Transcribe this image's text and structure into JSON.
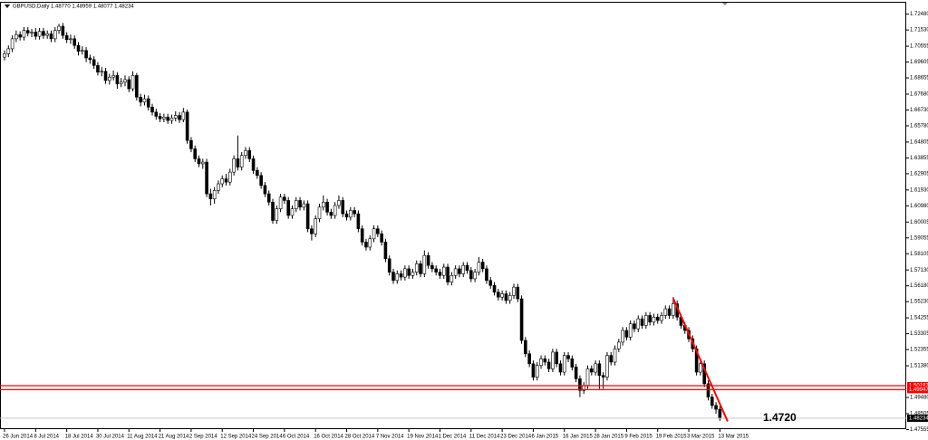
{
  "chart_data": {
    "type": "candlestick",
    "title": "GBPUSD,Daily  1.48770 1.48959 1.48077 1.48234",
    "categories": [
      "26 Jun 2014",
      null,
      null,
      null,
      null,
      null,
      null,
      null,
      "8 Jul 2014",
      null,
      null,
      null,
      null,
      null,
      null,
      null,
      "18 Jul 2014",
      null,
      null,
      null,
      null,
      null,
      null,
      null,
      "30 Jul 2014",
      null,
      null,
      null,
      null,
      null,
      null,
      null,
      "11 Aug 2014",
      null,
      null,
      null,
      null,
      null,
      null,
      null,
      "21 Aug 2014",
      null,
      null,
      null,
      null,
      null,
      null,
      null,
      "2 Sep 2014",
      null,
      null,
      null,
      null,
      null,
      null,
      null,
      "12 Sep 2014",
      null,
      null,
      null,
      null,
      null,
      null,
      null,
      "24 Sep 2014",
      null,
      null,
      null,
      null,
      null,
      null,
      null,
      "6 Oct 2014",
      null,
      null,
      null,
      null,
      null,
      null,
      null,
      "16 Oct 2014",
      null,
      null,
      null,
      null,
      null,
      null,
      null,
      "28 Oct 2014",
      null,
      null,
      null,
      null,
      null,
      null,
      null,
      "7 Nov 2014",
      null,
      null,
      null,
      null,
      null,
      null,
      null,
      "19 Nov 2014",
      null,
      null,
      null,
      null,
      null,
      null,
      null,
      "1 Dec 2014",
      null,
      null,
      null,
      null,
      null,
      null,
      null,
      "11 Dec 2014",
      null,
      null,
      null,
      null,
      null,
      null,
      null,
      "23 Dec 2014",
      null,
      null,
      null,
      null,
      null,
      null,
      null,
      "6 Jan 2015",
      null,
      null,
      null,
      null,
      null,
      null,
      null,
      "16 Jan 2015",
      null,
      null,
      null,
      null,
      null,
      null,
      null,
      "28 Jan 2015",
      null,
      null,
      null,
      null,
      null,
      null,
      null,
      "9 Feb 2015",
      null,
      null,
      null,
      null,
      null,
      null,
      null,
      "19 Feb 2015",
      null,
      null,
      null,
      null,
      null,
      null,
      null,
      "3 Mar 2015",
      null,
      null,
      null,
      null,
      null,
      null,
      null,
      "13 Mar 2015"
    ],
    "open": [
      1.699,
      1.701,
      1.704,
      1.71,
      1.7125,
      1.711,
      1.715,
      1.7135,
      1.714,
      1.7115,
      1.7145,
      1.712,
      1.713,
      1.71,
      1.715,
      1.7175,
      1.712,
      1.7095,
      1.71,
      1.706,
      1.7025,
      1.703,
      1.6985,
      1.6975,
      1.694,
      1.69,
      1.6905,
      1.685,
      1.687,
      1.688,
      1.683,
      1.684,
      1.6855,
      1.68,
      1.688,
      1.675,
      1.672,
      1.674,
      1.669,
      1.666,
      1.6635,
      1.662,
      1.663,
      1.661,
      1.6625,
      1.664,
      1.6615,
      1.666,
      1.649,
      1.644,
      1.638,
      1.635,
      1.636,
      1.617,
      1.614,
      1.619,
      1.623,
      1.626,
      1.624,
      1.63,
      1.638,
      1.633,
      1.64,
      1.643,
      1.638,
      1.631,
      1.628,
      1.622,
      1.617,
      1.612,
      1.601,
      1.608,
      1.615,
      1.613,
      1.604,
      1.608,
      1.613,
      1.609,
      1.611,
      1.596,
      1.593,
      1.602,
      1.609,
      1.612,
      1.606,
      1.604,
      1.61,
      1.613,
      1.605,
      1.603,
      1.607,
      1.605,
      1.596,
      1.588,
      1.585,
      1.59,
      1.596,
      1.593,
      1.588,
      1.578,
      1.57,
      1.565,
      1.569,
      1.567,
      1.572,
      1.568,
      1.57,
      1.575,
      1.569,
      1.58,
      1.574,
      1.572,
      1.57,
      1.568,
      1.573,
      1.564,
      1.568,
      1.572,
      1.569,
      1.574,
      1.571,
      1.566,
      1.57,
      1.576,
      1.572,
      1.565,
      1.562,
      1.558,
      1.555,
      1.557,
      1.553,
      1.556,
      1.561,
      1.554,
      1.529,
      1.521,
      1.515,
      1.507,
      1.514,
      1.518,
      1.516,
      1.512,
      1.522,
      1.515,
      1.51,
      1.52,
      1.518,
      1.513,
      1.506,
      1.499,
      1.502,
      1.512,
      1.51,
      1.515,
      1.508,
      1.507,
      1.52,
      1.516,
      1.524,
      1.528,
      1.535,
      1.531,
      1.539,
      1.536,
      1.542,
      1.538,
      1.544,
      1.54,
      1.543,
      1.541,
      1.544,
      1.548,
      1.544,
      1.551,
      1.543,
      1.538,
      1.535,
      1.53,
      1.524,
      1.51,
      1.515,
      1.503,
      1.495,
      1.49,
      1.4877
    ],
    "high": [
      1.703,
      1.706,
      1.712,
      1.715,
      1.7145,
      1.717,
      1.717,
      1.716,
      1.7165,
      1.7165,
      1.7165,
      1.715,
      1.715,
      1.717,
      1.719,
      1.7195,
      1.714,
      1.7125,
      1.712,
      1.708,
      1.7055,
      1.705,
      1.7005,
      1.6995,
      1.696,
      1.693,
      1.6925,
      1.689,
      1.691,
      1.69,
      1.6865,
      1.688,
      1.6875,
      1.6905,
      1.6895,
      1.677,
      1.6765,
      1.676,
      1.671,
      1.668,
      1.6655,
      1.665,
      1.665,
      1.6645,
      1.6665,
      1.666,
      1.6685,
      1.6675,
      1.651,
      1.646,
      1.64,
      1.638,
      1.638,
      1.62,
      1.621,
      1.625,
      1.628,
      1.629,
      1.632,
      1.64,
      1.652,
      1.642,
      1.645,
      1.645,
      1.64,
      1.633,
      1.63,
      1.624,
      1.619,
      1.614,
      1.61,
      1.617,
      1.617,
      1.615,
      1.61,
      1.615,
      1.615,
      1.613,
      1.613,
      1.598,
      1.604,
      1.611,
      1.616,
      1.614,
      1.608,
      1.612,
      1.616,
      1.615,
      1.607,
      1.609,
      1.609,
      1.607,
      1.598,
      1.59,
      1.592,
      1.598,
      1.598,
      1.595,
      1.59,
      1.58,
      1.572,
      1.571,
      1.571,
      1.574,
      1.574,
      1.572,
      1.577,
      1.577,
      1.583,
      1.582,
      1.576,
      1.574,
      1.572,
      1.575,
      1.575,
      1.57,
      1.574,
      1.574,
      1.576,
      1.576,
      1.573,
      1.572,
      1.579,
      1.578,
      1.574,
      1.567,
      1.564,
      1.56,
      1.559,
      1.559,
      1.558,
      1.563,
      1.563,
      1.556,
      1.531,
      1.523,
      1.517,
      1.516,
      1.52,
      1.52,
      1.518,
      1.524,
      1.524,
      1.517,
      1.522,
      1.522,
      1.52,
      1.515,
      1.508,
      1.504,
      1.514,
      1.514,
      1.517,
      1.517,
      1.51,
      1.522,
      1.522,
      1.526,
      1.53,
      1.537,
      1.537,
      1.541,
      1.541,
      1.544,
      1.544,
      1.546,
      1.546,
      1.545,
      1.545,
      1.546,
      1.55,
      1.55,
      1.555,
      1.553,
      1.545,
      1.54,
      1.537,
      1.532,
      1.526,
      1.517,
      1.517,
      1.505,
      1.497,
      1.492,
      1.48959
    ],
    "low": [
      1.697,
      1.699,
      1.702,
      1.708,
      1.709,
      1.709,
      1.7115,
      1.711,
      1.7095,
      1.7095,
      1.71,
      1.71,
      1.708,
      1.708,
      1.713,
      1.71,
      1.7075,
      1.707,
      1.704,
      1.7,
      1.7005,
      1.696,
      1.695,
      1.692,
      1.688,
      1.6875,
      1.683,
      1.6825,
      1.685,
      1.68,
      1.681,
      1.6815,
      1.678,
      1.6785,
      1.673,
      1.6695,
      1.67,
      1.667,
      1.664,
      1.6615,
      1.66,
      1.66,
      1.659,
      1.659,
      1.6605,
      1.6595,
      1.66,
      1.647,
      1.642,
      1.636,
      1.633,
      1.632,
      1.615,
      1.61,
      1.611,
      1.617,
      1.621,
      1.622,
      1.622,
      1.628,
      1.631,
      1.631,
      1.638,
      1.636,
      1.629,
      1.626,
      1.62,
      1.615,
      1.61,
      1.599,
      1.599,
      1.606,
      1.611,
      1.602,
      1.602,
      1.606,
      1.607,
      1.607,
      1.594,
      1.589,
      1.591,
      1.6,
      1.607,
      1.604,
      1.602,
      1.602,
      1.608,
      1.603,
      1.601,
      1.601,
      1.603,
      1.594,
      1.586,
      1.583,
      1.583,
      1.588,
      1.591,
      1.586,
      1.576,
      1.568,
      1.563,
      1.563,
      1.565,
      1.565,
      1.566,
      1.566,
      1.568,
      1.567,
      1.567,
      1.572,
      1.57,
      1.568,
      1.566,
      1.566,
      1.562,
      1.562,
      1.566,
      1.567,
      1.567,
      1.569,
      1.564,
      1.564,
      1.568,
      1.57,
      1.563,
      1.56,
      1.556,
      1.553,
      1.553,
      1.551,
      1.551,
      1.554,
      1.552,
      1.527,
      1.519,
      1.513,
      1.505,
      1.505,
      1.512,
      1.514,
      1.51,
      1.51,
      1.513,
      1.508,
      1.508,
      1.516,
      1.511,
      1.504,
      1.495,
      1.497,
      1.5,
      1.508,
      1.508,
      1.5,
      1.5,
      1.505,
      1.514,
      1.514,
      1.522,
      1.526,
      1.529,
      1.529,
      1.534,
      1.534,
      1.536,
      1.536,
      1.538,
      1.538,
      1.539,
      1.539,
      1.542,
      1.542,
      1.542,
      1.541,
      1.536,
      1.533,
      1.528,
      1.522,
      1.508,
      1.508,
      1.501,
      1.493,
      1.488,
      1.485,
      1.48077
    ],
    "close": [
      1.701,
      1.704,
      1.71,
      1.7125,
      1.711,
      1.715,
      1.7135,
      1.714,
      1.7115,
      1.7145,
      1.712,
      1.713,
      1.71,
      1.715,
      1.7175,
      1.712,
      1.7095,
      1.71,
      1.706,
      1.7025,
      1.703,
      1.6985,
      1.6975,
      1.694,
      1.69,
      1.6905,
      1.685,
      1.687,
      1.688,
      1.683,
      1.684,
      1.6855,
      1.68,
      1.688,
      1.675,
      1.672,
      1.674,
      1.669,
      1.666,
      1.6635,
      1.662,
      1.663,
      1.661,
      1.6625,
      1.664,
      1.6615,
      1.666,
      1.649,
      1.644,
      1.638,
      1.635,
      1.636,
      1.617,
      1.614,
      1.619,
      1.623,
      1.626,
      1.624,
      1.63,
      1.638,
      1.633,
      1.64,
      1.643,
      1.638,
      1.631,
      1.628,
      1.622,
      1.617,
      1.612,
      1.601,
      1.608,
      1.615,
      1.613,
      1.604,
      1.608,
      1.613,
      1.609,
      1.611,
      1.596,
      1.593,
      1.602,
      1.609,
      1.612,
      1.606,
      1.604,
      1.61,
      1.613,
      1.605,
      1.603,
      1.607,
      1.605,
      1.596,
      1.588,
      1.585,
      1.59,
      1.596,
      1.593,
      1.588,
      1.578,
      1.57,
      1.565,
      1.569,
      1.567,
      1.572,
      1.568,
      1.57,
      1.575,
      1.569,
      1.58,
      1.574,
      1.572,
      1.57,
      1.568,
      1.573,
      1.564,
      1.568,
      1.572,
      1.569,
      1.574,
      1.571,
      1.566,
      1.57,
      1.576,
      1.572,
      1.565,
      1.562,
      1.558,
      1.555,
      1.557,
      1.553,
      1.556,
      1.561,
      1.554,
      1.529,
      1.521,
      1.515,
      1.507,
      1.514,
      1.518,
      1.516,
      1.512,
      1.522,
      1.515,
      1.51,
      1.52,
      1.518,
      1.513,
      1.506,
      1.499,
      1.502,
      1.512,
      1.51,
      1.515,
      1.508,
      1.507,
      1.52,
      1.516,
      1.524,
      1.528,
      1.535,
      1.531,
      1.539,
      1.536,
      1.542,
      1.538,
      1.544,
      1.54,
      1.543,
      1.541,
      1.544,
      1.548,
      1.544,
      1.551,
      1.543,
      1.538,
      1.535,
      1.53,
      1.524,
      1.51,
      1.515,
      1.503,
      1.495,
      1.49,
      1.4877,
      1.48234
    ],
    "ylim": [
      1.4747,
      1.7322
    ],
    "yticks": [
      {
        "value": 1.7248,
        "label": "1.72480"
      },
      {
        "value": 1.7153,
        "label": "1.71530"
      },
      1.70555,
      1.69605,
      1.68655,
      {
        "value": 1.6768,
        "label": "1.67680"
      },
      {
        "value": 1.6673,
        "label": "1.66730"
      },
      {
        "value": 1.6578,
        "label": "1.65780"
      },
      1.64805,
      1.63855,
      1.62905,
      {
        "value": 1.6193,
        "label": "1.61930"
      },
      {
        "value": 1.6098,
        "label": "1.60980"
      },
      1.60005,
      1.59055,
      1.58105,
      {
        "value": 1.5713,
        "label": "1.57130"
      },
      {
        "value": 1.5618,
        "label": "1.56180"
      },
      {
        "value": 1.5523,
        "label": "1.55230"
      },
      1.54255,
      1.53305,
      1.52355,
      {
        "value": 1.5138,
        "label": "1.51380"
      },
      {
        "value": 1.4948,
        "label": "1.49480"
      },
      1.48505,
      1.47555
    ],
    "hlines": [
      1.50187,
      1.49947
    ],
    "hline_color": "#ff0000",
    "bid": 1.48234,
    "trendline": {
      "x": [
        172,
        186
      ],
      "y": [
        1.5542,
        1.4804
      ],
      "color": "#ff0000"
    },
    "annotation": "1.4720",
    "up_color": "#ffffff",
    "down_color": "#000000"
  }
}
